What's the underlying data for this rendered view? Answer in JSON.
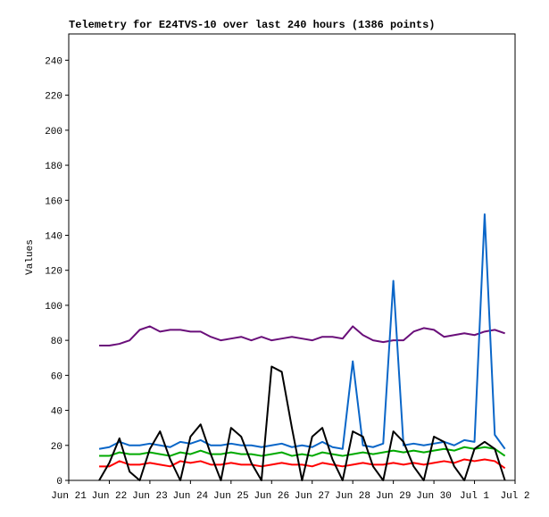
{
  "chart_data": {
    "type": "line",
    "title": "Telemetry for E24TVS-10 over last 240 hours (1386 points)",
    "y_label": "Values",
    "xlim": [
      21,
      32
    ],
    "xticks": [
      {
        "value": 21,
        "label": "Jun 21"
      },
      {
        "value": 22,
        "label": "Jun 22"
      },
      {
        "value": 23,
        "label": "Jun 23"
      },
      {
        "value": 24,
        "label": "Jun 24"
      },
      {
        "value": 25,
        "label": "Jun 25"
      },
      {
        "value": 26,
        "label": "Jun 26"
      },
      {
        "value": 27,
        "label": "Jun 27"
      },
      {
        "value": 28,
        "label": "Jun 28"
      },
      {
        "value": 29,
        "label": "Jun 29"
      },
      {
        "value": 30,
        "label": "Jun 30"
      },
      {
        "value": 31,
        "label": "Jul 1"
      },
      {
        "value": 32,
        "label": "Jul 2"
      }
    ],
    "ylim": [
      0,
      255
    ],
    "yticks": [
      0,
      20,
      40,
      60,
      80,
      100,
      120,
      140,
      160,
      180,
      200,
      220,
      240
    ],
    "grid": false,
    "x": [
      21.75,
      22,
      22.25,
      22.5,
      22.75,
      23,
      23.25,
      23.5,
      23.75,
      24,
      24.25,
      24.5,
      24.75,
      25,
      25.25,
      25.5,
      25.75,
      26,
      26.25,
      26.5,
      26.75,
      27,
      27.25,
      27.5,
      27.75,
      28,
      28.25,
      28.5,
      28.75,
      29,
      29.25,
      29.5,
      29.75,
      30,
      30.25,
      30.5,
      30.75,
      31,
      31.25,
      31.5,
      31.75
    ],
    "series": [
      {
        "color": "#6a0f7a",
        "values": [
          77,
          77,
          78,
          80,
          86,
          88,
          85,
          86,
          86,
          85,
          85,
          82,
          80,
          81,
          82,
          80,
          82,
          80,
          81,
          82,
          81,
          80,
          82,
          82,
          81,
          88,
          83,
          80,
          79,
          80,
          80,
          85,
          87,
          86,
          82,
          83,
          84,
          83,
          85,
          86,
          84
        ]
      },
      {
        "color": "#0a66c8",
        "values": [
          18,
          19,
          22,
          20,
          20,
          21,
          20,
          19,
          22,
          21,
          23,
          20,
          20,
          21,
          20,
          20,
          19,
          20,
          21,
          19,
          20,
          19,
          22,
          19,
          18,
          68,
          20,
          19,
          21,
          114,
          20,
          21,
          20,
          21,
          22,
          20,
          23,
          22,
          152,
          26,
          18
        ]
      },
      {
        "color": "#00aa00",
        "values": [
          14,
          14,
          16,
          15,
          15,
          16,
          15,
          14,
          16,
          15,
          17,
          15,
          15,
          16,
          15,
          15,
          14,
          15,
          16,
          14,
          15,
          14,
          16,
          15,
          14,
          15,
          16,
          15,
          16,
          17,
          16,
          17,
          16,
          17,
          18,
          17,
          19,
          18,
          19,
          18,
          14
        ]
      },
      {
        "color": "#ff0000",
        "values": [
          8,
          8,
          11,
          9,
          9,
          10,
          9,
          8,
          11,
          10,
          11,
          9,
          9,
          10,
          9,
          9,
          8,
          9,
          10,
          9,
          9,
          8,
          10,
          9,
          8,
          9,
          10,
          9,
          9,
          10,
          9,
          10,
          9,
          10,
          11,
          10,
          12,
          11,
          12,
          11,
          7
        ]
      },
      {
        "color": "#000000",
        "values": [
          0,
          10,
          24,
          5,
          0,
          18,
          28,
          12,
          0,
          25,
          32,
          15,
          0,
          30,
          25,
          10,
          0,
          65,
          62,
          30,
          0,
          25,
          30,
          12,
          0,
          28,
          25,
          8,
          0,
          28,
          22,
          8,
          0,
          25,
          22,
          8,
          0,
          18,
          22,
          18,
          0
        ]
      }
    ]
  }
}
